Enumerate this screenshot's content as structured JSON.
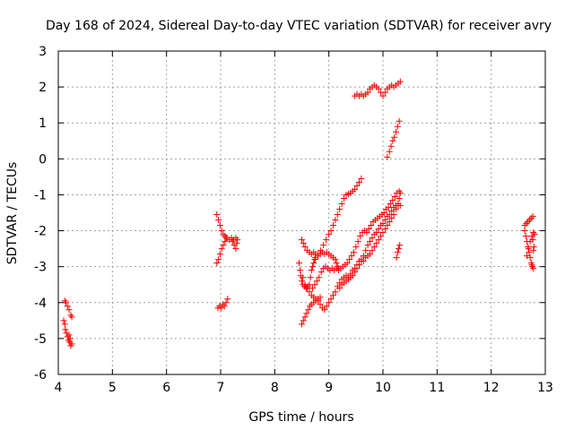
{
  "chart_data": {
    "type": "scatter",
    "title": "Day 168 of 2024, Sidereal Day-to-day VTEC variation (SDTVAR) for receiver avry",
    "xlabel": "GPS time / hours",
    "ylabel": "SDTVAR / TECUs",
    "xlim": [
      4,
      13
    ],
    "ylim": [
      -6,
      3
    ],
    "xticks": [
      4,
      5,
      6,
      7,
      8,
      9,
      10,
      11,
      12,
      13
    ],
    "yticks": [
      -6,
      -5,
      -4,
      -3,
      -2,
      -1,
      0,
      1,
      2,
      3
    ],
    "grid": true,
    "marker": "+",
    "color": "#ff0000",
    "series": [
      {
        "name": "seg-1",
        "points": [
          [
            4.12,
            -3.95
          ],
          [
            4.14,
            -4.0
          ],
          [
            4.17,
            -4.1
          ],
          [
            4.2,
            -4.2
          ],
          [
            4.23,
            -4.35
          ],
          [
            4.25,
            -4.4
          ]
        ]
      },
      {
        "name": "seg-2",
        "points": [
          [
            4.1,
            -4.5
          ],
          [
            4.12,
            -4.6
          ],
          [
            4.13,
            -4.75
          ],
          [
            4.15,
            -4.85
          ],
          [
            4.17,
            -4.95
          ],
          [
            4.19,
            -5.05
          ],
          [
            4.21,
            -5.1
          ],
          [
            4.23,
            -5.2
          ],
          [
            4.25,
            -5.15
          ],
          [
            4.2,
            -4.9
          ],
          [
            4.22,
            -5.0
          ]
        ]
      },
      {
        "name": "seg-3",
        "points": [
          [
            6.93,
            -1.55
          ],
          [
            6.96,
            -1.7
          ],
          [
            6.99,
            -1.85
          ],
          [
            7.02,
            -2.0
          ],
          [
            7.05,
            -2.1
          ],
          [
            7.08,
            -2.15
          ],
          [
            7.12,
            -2.2
          ],
          [
            7.16,
            -2.25
          ],
          [
            7.2,
            -2.2
          ],
          [
            7.24,
            -2.25
          ],
          [
            7.28,
            -2.2
          ],
          [
            7.31,
            -2.25
          ],
          [
            7.25,
            -2.4
          ],
          [
            7.28,
            -2.5
          ],
          [
            7.22,
            -2.3
          ],
          [
            7.3,
            -2.35
          ]
        ]
      },
      {
        "name": "seg-4",
        "points": [
          [
            6.93,
            -2.9
          ],
          [
            6.96,
            -2.8
          ],
          [
            6.99,
            -2.65
          ],
          [
            7.02,
            -2.5
          ],
          [
            7.05,
            -2.4
          ],
          [
            7.08,
            -2.3
          ],
          [
            7.1,
            -2.2
          ]
        ]
      },
      {
        "name": "seg-5",
        "points": [
          [
            6.95,
            -4.15
          ],
          [
            6.98,
            -4.1
          ],
          [
            7.01,
            -4.15
          ],
          [
            7.04,
            -4.05
          ],
          [
            7.07,
            -4.1
          ],
          [
            7.1,
            -4.0
          ],
          [
            7.13,
            -3.9
          ]
        ]
      },
      {
        "name": "seg-6",
        "points": [
          [
            8.45,
            -2.9
          ],
          [
            8.47,
            -3.1
          ],
          [
            8.48,
            -3.25
          ],
          [
            8.5,
            -3.4
          ],
          [
            8.52,
            -3.5
          ],
          [
            8.55,
            -3.55
          ],
          [
            8.58,
            -3.6
          ],
          [
            8.61,
            -3.55
          ],
          [
            8.64,
            -3.5
          ],
          [
            8.66,
            -3.3
          ],
          [
            8.68,
            -3.1
          ],
          [
            8.7,
            -3.0
          ],
          [
            8.72,
            -2.9
          ],
          [
            8.74,
            -2.8
          ],
          [
            8.75,
            -2.75
          ]
        ]
      },
      {
        "name": "seg-7",
        "points": [
          [
            8.5,
            -2.25
          ],
          [
            8.53,
            -2.35
          ],
          [
            8.56,
            -2.45
          ],
          [
            8.6,
            -2.55
          ],
          [
            8.64,
            -2.6
          ],
          [
            8.68,
            -2.65
          ],
          [
            8.72,
            -2.6
          ],
          [
            8.76,
            -2.65
          ],
          [
            8.8,
            -2.7
          ],
          [
            8.84,
            -2.65
          ],
          [
            8.88,
            -2.6
          ],
          [
            8.92,
            -2.65
          ],
          [
            8.96,
            -2.6
          ],
          [
            9.0,
            -2.65
          ],
          [
            9.04,
            -2.7
          ],
          [
            9.08,
            -2.75
          ],
          [
            9.12,
            -2.8
          ],
          [
            9.14,
            -2.9
          ],
          [
            9.16,
            -3.0
          ],
          [
            9.18,
            -3.05
          ]
        ]
      },
      {
        "name": "seg-8",
        "points": [
          [
            8.5,
            -4.6
          ],
          [
            8.53,
            -4.5
          ],
          [
            8.56,
            -4.4
          ],
          [
            8.59,
            -4.3
          ],
          [
            8.62,
            -4.2
          ],
          [
            8.65,
            -4.1
          ],
          [
            8.68,
            -4.05
          ],
          [
            8.72,
            -4.0
          ],
          [
            8.76,
            -3.95
          ],
          [
            8.8,
            -3.9
          ],
          [
            8.84,
            -3.85
          ]
        ]
      },
      {
        "name": "seg-9",
        "points": [
          [
            8.52,
            -3.3
          ],
          [
            8.56,
            -3.5
          ],
          [
            8.6,
            -3.6
          ],
          [
            8.64,
            -3.7
          ],
          [
            8.68,
            -3.8
          ],
          [
            8.72,
            -3.85
          ],
          [
            8.76,
            -3.9
          ],
          [
            8.8,
            -3.95
          ],
          [
            8.84,
            -4.05
          ],
          [
            8.88,
            -4.15
          ],
          [
            8.92,
            -4.2
          ],
          [
            8.96,
            -4.1
          ],
          [
            9.0,
            -4.0
          ],
          [
            9.04,
            -3.9
          ],
          [
            9.08,
            -3.8
          ],
          [
            9.12,
            -3.7
          ],
          [
            9.16,
            -3.55
          ],
          [
            9.2,
            -3.45
          ],
          [
            9.24,
            -3.35
          ],
          [
            9.28,
            -3.3
          ],
          [
            9.32,
            -3.25
          ],
          [
            9.36,
            -3.3
          ],
          [
            9.4,
            -3.2
          ],
          [
            9.44,
            -3.1
          ],
          [
            9.48,
            -3.05
          ],
          [
            9.52,
            -2.95
          ],
          [
            9.56,
            -2.85
          ],
          [
            9.6,
            -2.8
          ],
          [
            9.64,
            -2.7
          ],
          [
            9.68,
            -2.55
          ],
          [
            9.72,
            -2.4
          ],
          [
            9.76,
            -2.3
          ],
          [
            9.8,
            -2.2
          ],
          [
            9.84,
            -2.1
          ],
          [
            9.88,
            -2.05
          ],
          [
            9.92,
            -1.95
          ],
          [
            9.96,
            -1.85
          ],
          [
            10.0,
            -1.8
          ],
          [
            10.04,
            -1.7
          ],
          [
            10.08,
            -1.6
          ],
          [
            10.12,
            -1.55
          ],
          [
            10.16,
            -1.45
          ],
          [
            10.2,
            -1.35
          ],
          [
            10.24,
            -1.3
          ],
          [
            10.28,
            -1.3
          ],
          [
            10.32,
            -1.3
          ]
        ]
      },
      {
        "name": "seg-10",
        "points": [
          [
            8.7,
            -3.6
          ],
          [
            8.74,
            -3.5
          ],
          [
            8.78,
            -3.4
          ],
          [
            8.82,
            -3.3
          ],
          [
            8.86,
            -3.15
          ],
          [
            8.9,
            -3.05
          ],
          [
            8.94,
            -3.0
          ],
          [
            8.98,
            -3.05
          ],
          [
            9.02,
            -3.1
          ],
          [
            9.06,
            -3.05
          ],
          [
            9.1,
            -3.1
          ],
          [
            9.14,
            -3.05
          ],
          [
            9.18,
            -3.1
          ],
          [
            9.22,
            -3.05
          ],
          [
            9.26,
            -3.0
          ],
          [
            9.3,
            -2.95
          ],
          [
            9.34,
            -2.9
          ],
          [
            9.38,
            -2.8
          ],
          [
            9.42,
            -2.7
          ],
          [
            9.46,
            -2.6
          ],
          [
            9.5,
            -2.45
          ],
          [
            9.54,
            -2.3
          ],
          [
            9.58,
            -2.15
          ],
          [
            9.62,
            -2.05
          ],
          [
            9.66,
            -2.0
          ],
          [
            9.7,
            -2.05
          ],
          [
            9.74,
            -1.95
          ],
          [
            9.78,
            -1.85
          ],
          [
            9.82,
            -1.75
          ],
          [
            9.86,
            -1.7
          ],
          [
            9.9,
            -1.65
          ],
          [
            9.94,
            -1.6
          ],
          [
            9.98,
            -1.55
          ],
          [
            10.02,
            -1.5
          ],
          [
            10.06,
            -1.4
          ],
          [
            10.1,
            -1.35
          ],
          [
            10.14,
            -1.25
          ],
          [
            10.18,
            -1.15
          ],
          [
            10.22,
            -1.05
          ],
          [
            10.26,
            -0.95
          ],
          [
            10.3,
            -0.9
          ]
        ]
      },
      {
        "name": "seg-11",
        "points": [
          [
            8.75,
            -2.8
          ],
          [
            8.8,
            -2.65
          ],
          [
            8.85,
            -2.55
          ],
          [
            8.9,
            -2.4
          ],
          [
            8.95,
            -2.25
          ],
          [
            9.0,
            -2.1
          ],
          [
            9.04,
            -2.0
          ],
          [
            9.08,
            -1.85
          ],
          [
            9.12,
            -1.7
          ],
          [
            9.16,
            -1.55
          ],
          [
            9.2,
            -1.4
          ],
          [
            9.24,
            -1.25
          ],
          [
            9.28,
            -1.1
          ],
          [
            9.32,
            -1.0
          ],
          [
            9.36,
            -0.98
          ],
          [
            9.4,
            -0.95
          ],
          [
            9.44,
            -0.9
          ],
          [
            9.48,
            -0.85
          ],
          [
            9.52,
            -0.75
          ],
          [
            9.56,
            -0.65
          ],
          [
            9.6,
            -0.55
          ]
        ]
      },
      {
        "name": "seg-12",
        "points": [
          [
            9.2,
            -3.6
          ],
          [
            9.24,
            -3.5
          ],
          [
            9.28,
            -3.45
          ],
          [
            9.32,
            -3.4
          ],
          [
            9.36,
            -3.35
          ],
          [
            9.4,
            -3.3
          ],
          [
            9.44,
            -3.25
          ],
          [
            9.48,
            -3.15
          ],
          [
            9.52,
            -3.05
          ],
          [
            9.56,
            -2.95
          ],
          [
            9.6,
            -2.85
          ],
          [
            9.64,
            -2.85
          ],
          [
            9.68,
            -2.75
          ],
          [
            9.72,
            -2.7
          ],
          [
            9.76,
            -2.65
          ],
          [
            9.8,
            -2.55
          ],
          [
            9.84,
            -2.45
          ],
          [
            9.88,
            -2.35
          ],
          [
            9.92,
            -2.25
          ],
          [
            9.96,
            -2.15
          ],
          [
            10.0,
            -2.05
          ],
          [
            10.04,
            -1.95
          ],
          [
            10.08,
            -1.85
          ],
          [
            10.12,
            -1.75
          ],
          [
            10.16,
            -1.65
          ],
          [
            10.2,
            -1.55
          ],
          [
            10.24,
            -1.4
          ],
          [
            10.28,
            -1.25
          ],
          [
            10.3,
            -1.1
          ],
          [
            10.32,
            -0.95
          ]
        ]
      },
      {
        "name": "seg-13",
        "points": [
          [
            10.25,
            -2.75
          ],
          [
            10.27,
            -2.6
          ],
          [
            10.29,
            -2.5
          ],
          [
            10.31,
            -2.4
          ]
        ]
      },
      {
        "name": "seg-14",
        "points": [
          [
            10.08,
            0.05
          ],
          [
            10.12,
            0.2
          ],
          [
            10.15,
            0.35
          ],
          [
            10.18,
            0.5
          ],
          [
            10.21,
            0.6
          ],
          [
            10.24,
            0.75
          ],
          [
            10.27,
            0.9
          ],
          [
            10.3,
            1.05
          ]
        ]
      },
      {
        "name": "seg-15",
        "points": [
          [
            9.48,
            1.75
          ],
          [
            9.52,
            1.8
          ],
          [
            9.56,
            1.75
          ],
          [
            9.6,
            1.8
          ],
          [
            9.64,
            1.75
          ],
          [
            9.68,
            1.8
          ],
          [
            9.72,
            1.85
          ],
          [
            9.76,
            1.95
          ],
          [
            9.8,
            2.0
          ],
          [
            9.84,
            2.05
          ],
          [
            9.88,
            2.0
          ],
          [
            9.92,
            1.95
          ],
          [
            9.96,
            1.85
          ],
          [
            10.0,
            1.75
          ],
          [
            10.04,
            1.85
          ],
          [
            10.08,
            1.95
          ],
          [
            10.12,
            2.0
          ],
          [
            10.16,
            2.05
          ],
          [
            10.2,
            2.0
          ],
          [
            10.24,
            2.05
          ],
          [
            10.28,
            2.1
          ],
          [
            10.32,
            2.15
          ]
        ]
      },
      {
        "name": "seg-16",
        "points": [
          [
            12.62,
            -1.85
          ],
          [
            12.65,
            -1.8
          ],
          [
            12.68,
            -1.75
          ],
          [
            12.71,
            -1.7
          ],
          [
            12.74,
            -1.65
          ],
          [
            12.77,
            -1.6
          ]
        ]
      },
      {
        "name": "seg-17",
        "points": [
          [
            12.62,
            -2.0
          ],
          [
            12.64,
            -2.15
          ],
          [
            12.66,
            -2.3
          ],
          [
            12.68,
            -2.45
          ],
          [
            12.7,
            -2.6
          ],
          [
            12.72,
            -2.75
          ],
          [
            12.74,
            -2.9
          ],
          [
            12.76,
            -3.0
          ],
          [
            12.78,
            -3.05
          ],
          [
            12.75,
            -2.95
          ]
        ]
      },
      {
        "name": "seg-18",
        "points": [
          [
            12.66,
            -2.7
          ],
          [
            12.69,
            -2.5
          ],
          [
            12.72,
            -2.3
          ],
          [
            12.75,
            -2.15
          ],
          [
            12.78,
            -2.05
          ],
          [
            12.8,
            -2.1
          ],
          [
            12.77,
            -2.25
          ],
          [
            12.79,
            -2.45
          ],
          [
            12.78,
            -2.55
          ]
        ]
      }
    ]
  }
}
